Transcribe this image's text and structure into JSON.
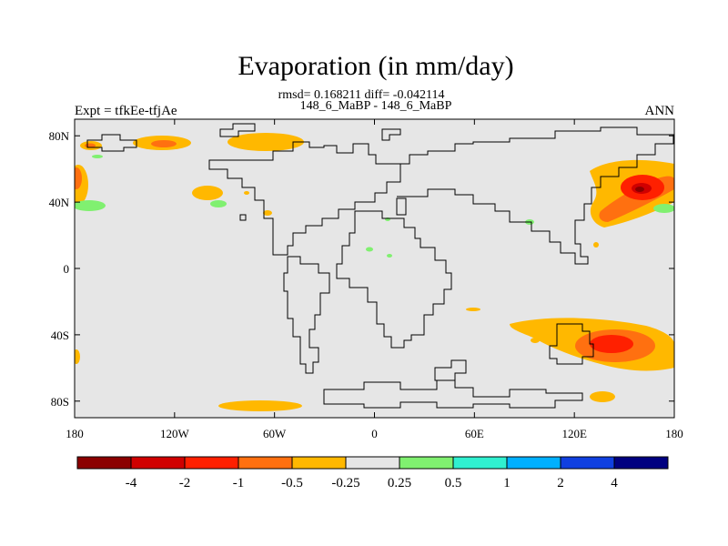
{
  "title": "Evaporation (in mm/day)",
  "stats_line": "rmsd= 0.168211 diff= -0.042114",
  "run_line": "148_6_MaBP - 148_6_MaBP",
  "expt_label": "Expt = tfkEe-tfjAe",
  "season_label": "ANN",
  "map": {
    "lon_range": [
      -180,
      180
    ],
    "lat_range": [
      -90,
      90
    ],
    "background_color": "#e6e6e6",
    "x_ticks": [
      {
        "value": -180,
        "label": "180"
      },
      {
        "value": -120,
        "label": "120W"
      },
      {
        "value": -60,
        "label": "60W"
      },
      {
        "value": 0,
        "label": "0"
      },
      {
        "value": 60,
        "label": "60E"
      },
      {
        "value": 120,
        "label": "120E"
      },
      {
        "value": 180,
        "label": "180"
      }
    ],
    "y_ticks": [
      {
        "value": 80,
        "label": "80N"
      },
      {
        "value": 40,
        "label": "40N"
      },
      {
        "value": 0,
        "label": "0"
      },
      {
        "value": -40,
        "label": "40S"
      },
      {
        "value": -80,
        "label": "80S"
      }
    ]
  },
  "colorbar": {
    "colors": [
      "#8b0000",
      "#d00000",
      "#ff2000",
      "#ff7010",
      "#ffb800",
      "#e6e6e6",
      "#80f070",
      "#30f0d0",
      "#00b0ff",
      "#1040e0",
      "#000080"
    ],
    "labels": [
      "-4",
      "-2",
      "-1",
      "-0.5",
      "-0.25",
      "0.25",
      "0.5",
      "1",
      "2",
      "4"
    ]
  }
}
